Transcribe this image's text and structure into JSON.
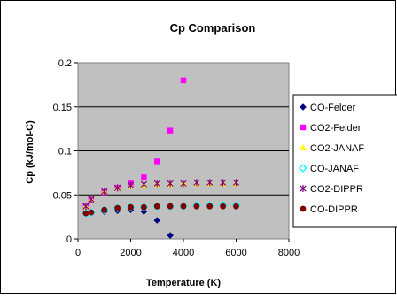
{
  "chart_data": {
    "type": "scatter",
    "title": "Cp Comparison",
    "xlabel": "Temperature (K)",
    "ylabel": "Cp (kJ/mol-C)",
    "xlim": [
      0,
      8000
    ],
    "ylim": [
      0,
      0.2
    ],
    "xticks": [
      "0",
      "2000",
      "4000",
      "6000",
      "8000"
    ],
    "yticks": [
      "0",
      "0.05",
      "0.1",
      "0.15",
      "0.2"
    ],
    "grid": "horizontal",
    "legend_position": "right",
    "plot_background": "#c0c0c0",
    "series": [
      {
        "name": "CO-Felder",
        "color": "#000080",
        "marker": "diamond",
        "points": [
          [
            300,
            0.029
          ],
          [
            500,
            0.03
          ],
          [
            1000,
            0.031
          ],
          [
            1500,
            0.032
          ],
          [
            2000,
            0.033
          ],
          [
            2500,
            0.031
          ],
          [
            3000,
            0.021
          ],
          [
            3500,
            0.004
          ]
        ]
      },
      {
        "name": "CO2-Felder",
        "color": "#ff00ff",
        "marker": "square",
        "points": [
          [
            300,
            0.037
          ],
          [
            500,
            0.044
          ],
          [
            1000,
            0.053
          ],
          [
            1500,
            0.058
          ],
          [
            2000,
            0.063
          ],
          [
            2500,
            0.07
          ],
          [
            3000,
            0.088
          ],
          [
            3500,
            0.123
          ],
          [
            4000,
            0.18
          ]
        ]
      },
      {
        "name": "CO2-JANAF",
        "color": "#ffff00",
        "marker": "triangle",
        "points": [
          [
            300,
            0.037
          ],
          [
            500,
            0.045
          ],
          [
            1000,
            0.054
          ],
          [
            1500,
            0.058
          ],
          [
            2000,
            0.06
          ],
          [
            2500,
            0.061
          ],
          [
            3000,
            0.062
          ],
          [
            3500,
            0.062
          ],
          [
            4000,
            0.063
          ],
          [
            4500,
            0.063
          ],
          [
            5000,
            0.063
          ],
          [
            5500,
            0.063
          ],
          [
            6000,
            0.063
          ]
        ]
      },
      {
        "name": "CO-JANAF",
        "color": "#00ffff",
        "marker": "open-diamond",
        "points": [
          [
            300,
            0.029
          ],
          [
            500,
            0.03
          ],
          [
            1000,
            0.033
          ],
          [
            1500,
            0.035
          ],
          [
            2000,
            0.036
          ],
          [
            2500,
            0.036
          ],
          [
            3000,
            0.037
          ],
          [
            3500,
            0.037
          ],
          [
            4000,
            0.037
          ],
          [
            4500,
            0.038
          ],
          [
            5000,
            0.038
          ],
          [
            5500,
            0.038
          ],
          [
            6000,
            0.038
          ]
        ]
      },
      {
        "name": "CO2-DIPPR",
        "color": "#800080",
        "marker": "star",
        "points": [
          [
            300,
            0.037
          ],
          [
            500,
            0.045
          ],
          [
            1000,
            0.054
          ],
          [
            1500,
            0.058
          ],
          [
            2000,
            0.061
          ],
          [
            2500,
            0.062
          ],
          [
            3000,
            0.063
          ],
          [
            3500,
            0.063
          ],
          [
            4000,
            0.063
          ],
          [
            4500,
            0.064
          ],
          [
            5000,
            0.064
          ],
          [
            5500,
            0.064
          ],
          [
            6000,
            0.064
          ]
        ]
      },
      {
        "name": "CO-DIPPR",
        "color": "#800000",
        "marker": "circle",
        "points": [
          [
            300,
            0.029
          ],
          [
            500,
            0.03
          ],
          [
            1000,
            0.033
          ],
          [
            1500,
            0.035
          ],
          [
            2000,
            0.036
          ],
          [
            2500,
            0.036
          ],
          [
            3000,
            0.037
          ],
          [
            3500,
            0.037
          ],
          [
            4000,
            0.037
          ],
          [
            4500,
            0.037
          ],
          [
            5000,
            0.037
          ],
          [
            5500,
            0.037
          ],
          [
            6000,
            0.037
          ]
        ]
      }
    ]
  }
}
